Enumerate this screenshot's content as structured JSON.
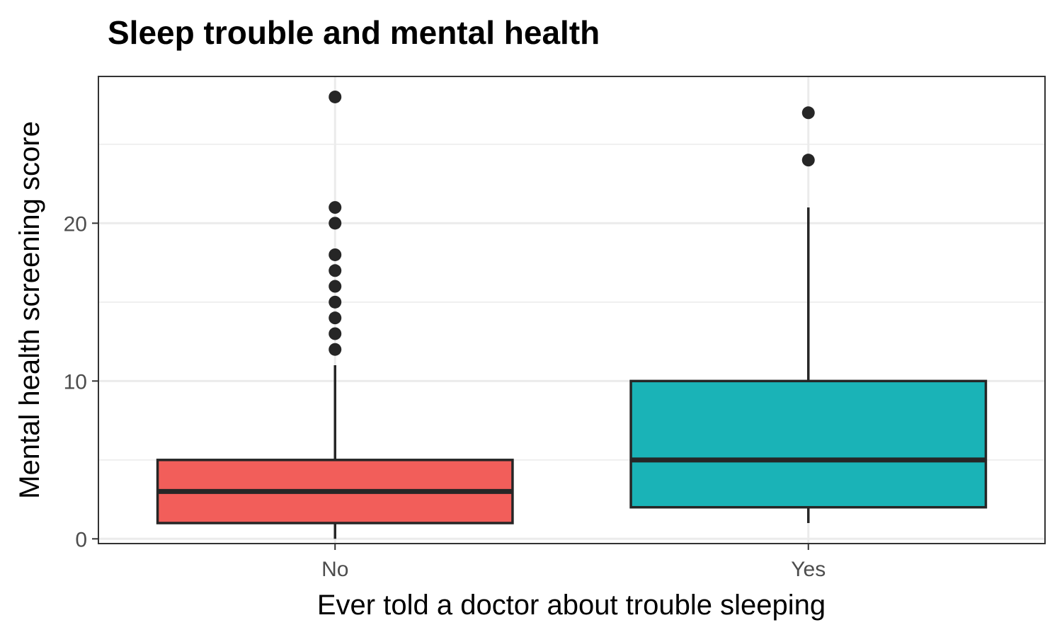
{
  "chart_data": {
    "type": "boxplot",
    "title": "Sleep trouble and mental health",
    "xlabel": "Ever told a doctor about trouble sleeping",
    "ylabel": "Mental health screening score",
    "categories": [
      "No",
      "Yes"
    ],
    "yticks": [
      0,
      10,
      20
    ],
    "ylim": [
      -0.3,
      29.3
    ],
    "grid": true,
    "legend": "none",
    "boxes": [
      {
        "category": "No",
        "color": "#f25e5a",
        "whisker_low": 0,
        "q1": 1,
        "median": 3,
        "q3": 5,
        "whisker_high": 11,
        "outliers": [
          12,
          13,
          14,
          15,
          16,
          17,
          18,
          20,
          21,
          28
        ]
      },
      {
        "category": "Yes",
        "color": "#1ab3b7",
        "whisker_low": 1,
        "q1": 2,
        "median": 5,
        "q3": 10,
        "whisker_high": 21,
        "outliers": [
          24,
          27
        ]
      }
    ]
  }
}
